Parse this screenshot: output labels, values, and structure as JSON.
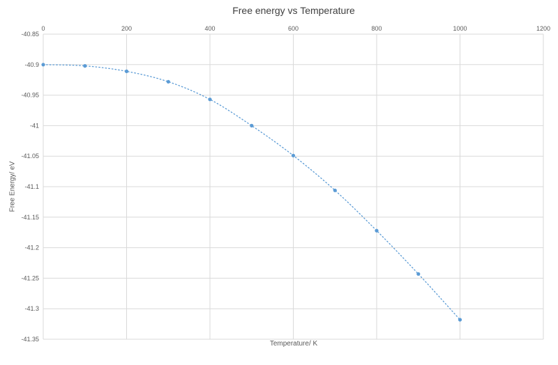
{
  "chart_data": {
    "type": "scatter",
    "title": "Free energy vs Temperature",
    "xlabel": "Temperature/ K",
    "ylabel": "Free Energy/ eV",
    "x": [
      0,
      100,
      200,
      300,
      400,
      500,
      600,
      700,
      800,
      900,
      1000
    ],
    "y": [
      -40.9,
      -40.902,
      -40.911,
      -40.928,
      -40.957,
      -41.0,
      -41.049,
      -41.106,
      -41.172,
      -41.243,
      -41.318
    ],
    "xlim": [
      0,
      1200
    ],
    "ylim": [
      -41.35,
      -40.85
    ],
    "x_ticks": [
      0,
      200,
      400,
      600,
      800,
      1000,
      1200
    ],
    "y_ticks": [
      -40.85,
      -40.9,
      -40.95,
      -41,
      -41.05,
      -41.1,
      -41.15,
      -41.2,
      -41.25,
      -41.3,
      -41.35
    ],
    "grid": true,
    "legend": "none",
    "trendline": "dotted",
    "colors": {
      "point": "#5B9BD5",
      "trendline": "#5B9BD5",
      "gridline": "#D9D9D9",
      "tick_text": "#595959",
      "title_text": "#404040"
    }
  }
}
